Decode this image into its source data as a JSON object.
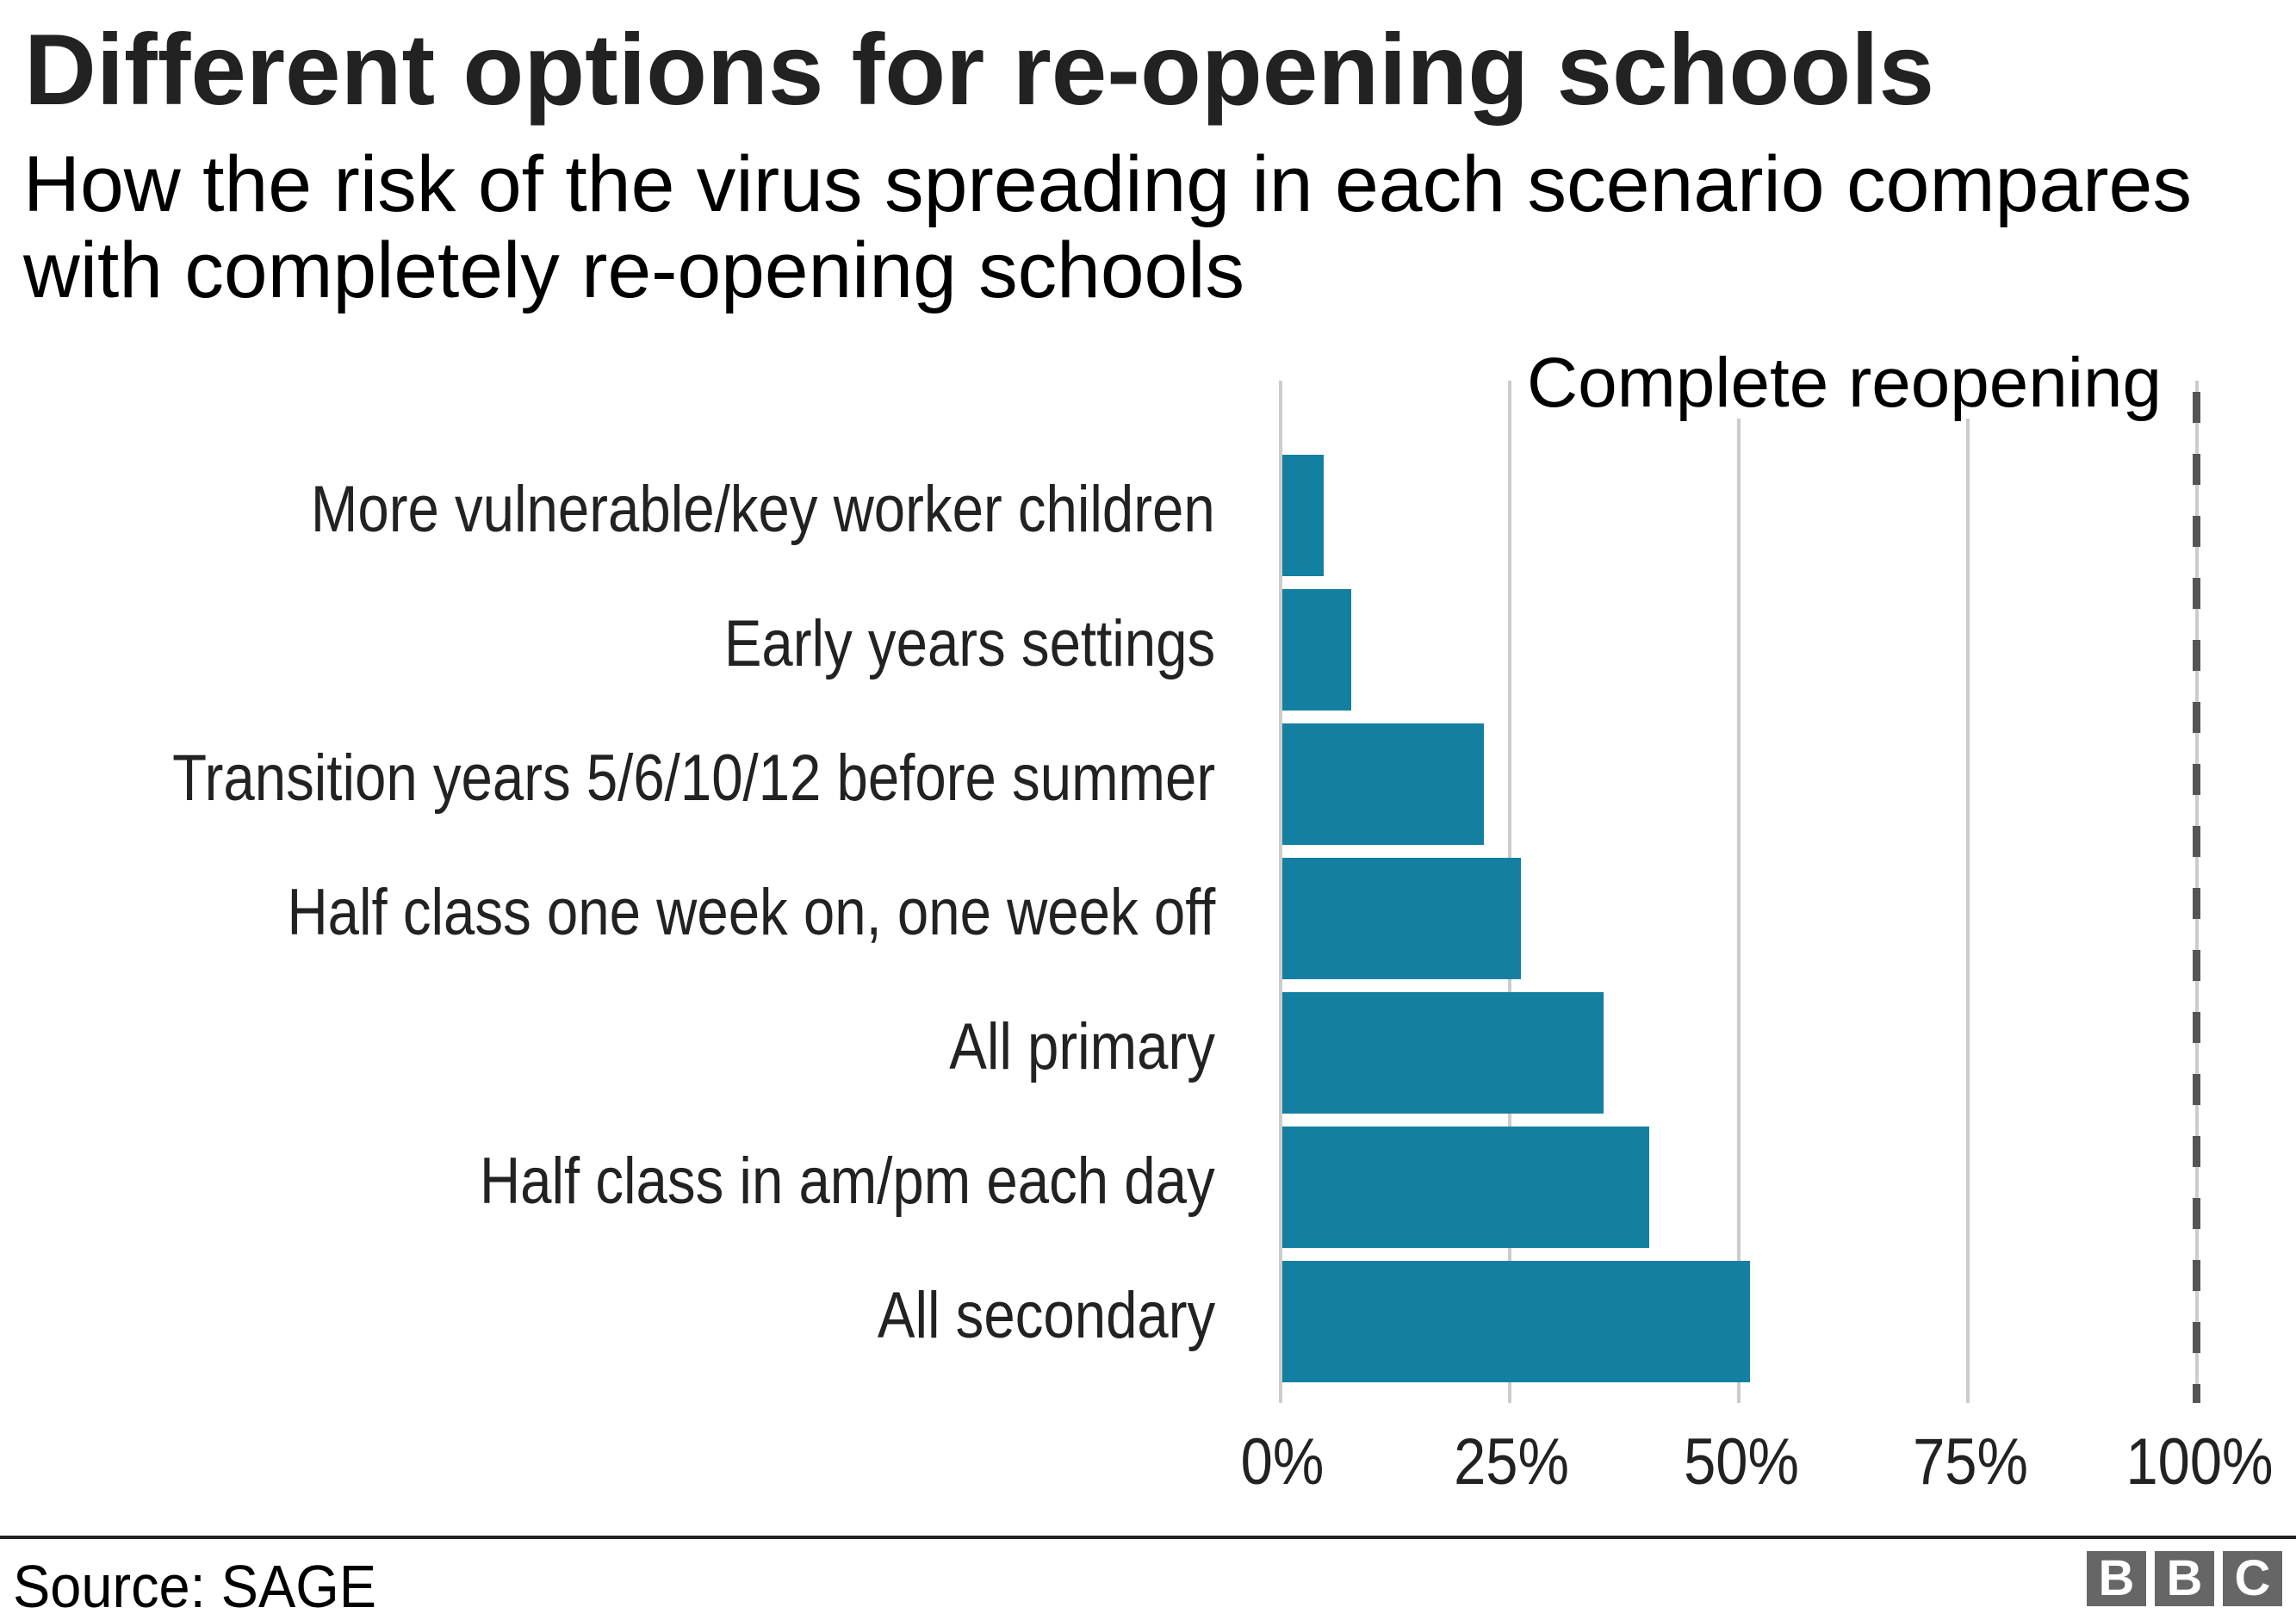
{
  "header": {
    "title": "Different options for re-opening schools",
    "subtitle_line1": "How the risk of the virus spreading in each scenario compares",
    "subtitle_line2": "with completely re-opening schools"
  },
  "reference": {
    "label": "Complete reopening",
    "value": 100,
    "line_color": "#555555"
  },
  "colors": {
    "bar": "#1380A1",
    "grid": "#cccccc",
    "text": "#222222"
  },
  "footer": {
    "source": "Source: SAGE",
    "logo_letters": [
      "B",
      "B",
      "C"
    ]
  },
  "chart_data": {
    "type": "bar",
    "orientation": "horizontal",
    "title": "Different options for re-opening schools",
    "subtitle": "How the risk of the virus spreading in each scenario compares with completely re-opening schools",
    "categories": [
      "More vulnerable/key worker children",
      "Early years settings",
      "Transition years 5/6/10/12 before summer",
      "Half class one week on, one week off",
      "All primary",
      "Half class in am/pm each day",
      "All secondary"
    ],
    "values": [
      4.5,
      7.5,
      22,
      26,
      35,
      40,
      51
    ],
    "xlabel": "",
    "ylabel": "",
    "xlim": [
      0,
      100
    ],
    "x_ticks": [
      "0%",
      "25%",
      "50%",
      "75%",
      "100%"
    ],
    "x_tick_values": [
      0,
      25,
      50,
      75,
      100
    ],
    "grid": true,
    "annotations": [
      {
        "type": "dashed-vline",
        "x": 100,
        "text": "Complete reopening"
      }
    ],
    "source": "Source: SAGE"
  }
}
